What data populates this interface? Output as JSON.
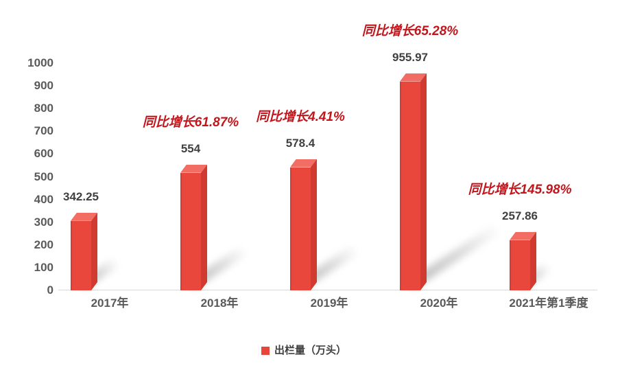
{
  "chart_data": {
    "type": "bar",
    "title": "",
    "categories": [
      "2017年",
      "2018年",
      "2019年",
      "2020年",
      "2021年第1季度"
    ],
    "values": [
      342.25,
      554,
      578.4,
      955.97,
      257.86
    ],
    "value_labels": [
      "342.25",
      "554",
      "578.4",
      "955.97",
      "257.86"
    ],
    "annotations": [
      "",
      "同比增长61.87%",
      "同比增长4.41%",
      "同比增长65.28%",
      "同比增长145.98%"
    ],
    "series_name": "出栏量（万头）",
    "legend": [
      {
        "label": "出栏量（万头）",
        "color": "#e8453c"
      }
    ],
    "legend_position": "bottom",
    "xlabel": "",
    "ylabel": "",
    "ylim": [
      0,
      1000
    ],
    "ytick_step": 100,
    "grid": false,
    "bar_style": "3d-column-with-shadow",
    "colors": {
      "bar_front": "#e9463c",
      "bar_top": "#f26d64",
      "bar_side": "#cf3a31",
      "annotation_text": "#c3161c",
      "data_label_text": "#404040",
      "axis_text": "#595959",
      "axis_line": "#d9d9d9",
      "shadow": "#7d7d7d",
      "background": "#ffffff"
    }
  }
}
